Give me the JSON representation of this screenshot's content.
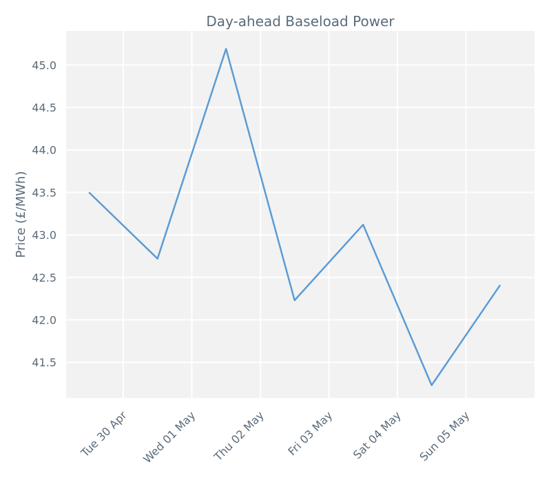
{
  "chart_data": {
    "type": "line",
    "title": "Day-ahead Baseload Power",
    "xlabel": "",
    "ylabel": "Price (£/MWh)",
    "x": [
      "2024-04-29 12:00",
      "2024-04-30 12:00",
      "2024-05-01 12:00",
      "2024-05-02 12:00",
      "2024-05-03 12:00",
      "2024-05-04 12:00",
      "2024-05-05 12:00"
    ],
    "series": [
      {
        "values": [
          43.5,
          42.72,
          45.19,
          42.23,
          43.12,
          41.23,
          42.41
        ]
      }
    ],
    "x_ticks": [
      {
        "date": "2024-04-30",
        "label": "Tue 30 Apr"
      },
      {
        "date": "2024-05-01",
        "label": "Wed 01 May"
      },
      {
        "date": "2024-05-02",
        "label": "Thu 02 May"
      },
      {
        "date": "2024-05-03",
        "label": "Fri 03 May"
      },
      {
        "date": "2024-05-04",
        "label": "Sat 04 May"
      },
      {
        "date": "2024-05-05",
        "label": "Sun 05 May"
      }
    ],
    "y_ticks": [
      41.5,
      42.0,
      42.5,
      43.0,
      43.5,
      44.0,
      44.5,
      45.0
    ],
    "ylim": [
      41.08,
      45.4
    ],
    "xlim": [
      "2024-04-29 04:00",
      "2024-05-06 00:00"
    ],
    "grid": true,
    "colors": {
      "line": "#5b9bd5",
      "plot_background": "#f2f2f2",
      "grid": "#ffffff",
      "text": "#5a6b7a"
    }
  }
}
